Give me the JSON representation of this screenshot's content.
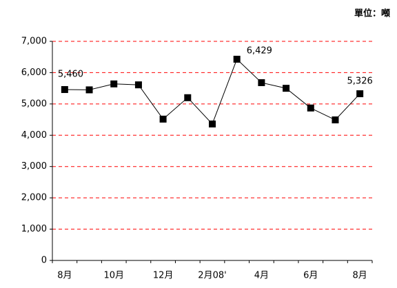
{
  "chart_data": {
    "type": "line",
    "unit": "單位：噸",
    "categories": [
      "8月",
      null,
      "10月",
      null,
      "12月",
      null,
      "2月08'",
      null,
      "4月",
      null,
      "6月",
      null,
      "8月"
    ],
    "series": [
      {
        "color": "#000000",
        "values": [
          5460,
          5450,
          5640,
          5610,
          4515,
          5200,
          4360,
          6429,
          5680,
          5500,
          4870,
          4490,
          5326
        ],
        "value_labels": [
          "5,460",
          null,
          null,
          null,
          null,
          null,
          null,
          "6,429",
          null,
          null,
          null,
          null,
          "5,326"
        ]
      }
    ],
    "ylim": [
      0,
      7000
    ],
    "yticks": [
      0,
      {
        "value": 1000,
        "label": "1,000"
      },
      {
        "value": 2000,
        "label": "2,000"
      },
      {
        "value": 3000,
        "label": "3,000"
      },
      {
        "value": 4000,
        "label": "4,000"
      },
      {
        "value": 5000,
        "label": "5,000"
      },
      {
        "value": 6000,
        "label": "6,000"
      },
      {
        "value": 7000,
        "label": "7,000"
      }
    ],
    "grid": true,
    "grid_color": "#ff0000"
  }
}
